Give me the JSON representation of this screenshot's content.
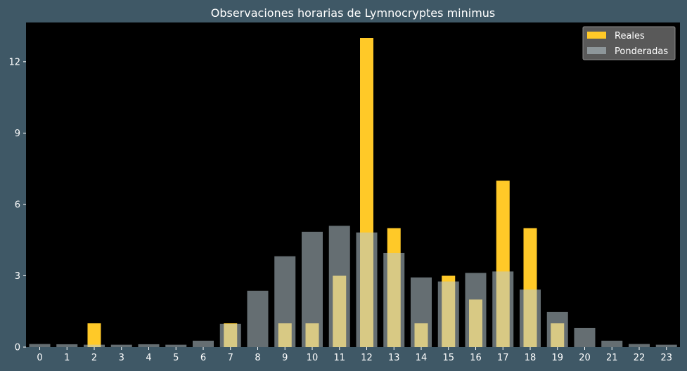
{
  "chart_data": {
    "type": "bar",
    "title": "Observaciones horarias de Lymnocryptes minimus",
    "xlabel": "",
    "ylabel": "",
    "categories": [
      "0",
      "1",
      "2",
      "3",
      "4",
      "5",
      "6",
      "7",
      "8",
      "9",
      "10",
      "11",
      "12",
      "13",
      "14",
      "15",
      "16",
      "17",
      "18",
      "19",
      "20",
      "21",
      "22",
      "23"
    ],
    "ylim": [
      0,
      13.65
    ],
    "yticks": [
      0,
      3,
      6,
      9,
      12
    ],
    "grid": false,
    "legend_position": "top-right",
    "series": [
      {
        "name": "Reales",
        "color": "#ffc928",
        "values": [
          0,
          0,
          1,
          0,
          0,
          0,
          0,
          1,
          0,
          1,
          1,
          3,
          13,
          5,
          1,
          3,
          2,
          7,
          5,
          1,
          0,
          0,
          0,
          0
        ]
      },
      {
        "name": "Ponderadas",
        "color": "#b8c9cf",
        "values": [
          0.13,
          0.12,
          0.1,
          0.1,
          0.12,
          0.1,
          0.27,
          0.98,
          2.37,
          3.82,
          4.85,
          5.1,
          4.82,
          3.96,
          2.93,
          2.76,
          3.12,
          3.18,
          2.42,
          1.48,
          0.8,
          0.27,
          0.13,
          0.1
        ]
      }
    ]
  }
}
